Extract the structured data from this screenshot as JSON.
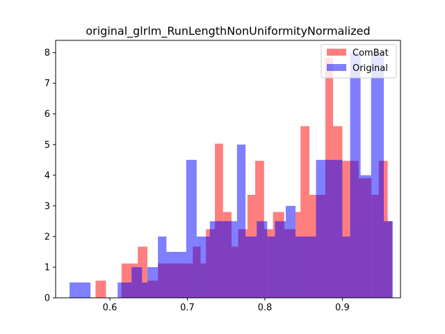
{
  "chart_data": {
    "type": "bar",
    "subtype": "overlapping-histogram",
    "title": "original_glrlm_RunLengthNonUniformityNormalized",
    "xlabel": "",
    "ylabel": "",
    "xlim": [
      0.53,
      0.975
    ],
    "ylim": [
      0,
      8.4
    ],
    "x_ticks": [
      0.6,
      0.7,
      0.8,
      0.9
    ],
    "x_tick_labels": [
      "0.6",
      "0.7",
      "0.8",
      "0.9"
    ],
    "y_ticks": [
      0,
      1,
      2,
      3,
      4,
      5,
      6,
      7,
      8
    ],
    "y_tick_labels": [
      "0",
      "1",
      "2",
      "3",
      "4",
      "5",
      "6",
      "7",
      "8"
    ],
    "grid": false,
    "legend_position": "top-right",
    "series": [
      {
        "name": "ComBat",
        "color": "#ff0000",
        "alpha": 0.5,
        "bins": [
          [
            0.5815,
            0.595,
            0.56
          ],
          [
            0.615,
            0.636,
            1.12
          ],
          [
            0.636,
            0.6485,
            1.67
          ],
          [
            0.6485,
            0.662,
            0.56
          ],
          [
            0.662,
            0.707,
            1.12
          ],
          [
            0.707,
            0.717,
            1.67
          ],
          [
            0.717,
            0.724,
            1.12
          ],
          [
            0.724,
            0.7355,
            2.24
          ],
          [
            0.7355,
            0.746,
            5.03
          ],
          [
            0.746,
            0.757,
            2.8
          ],
          [
            0.757,
            0.7655,
            1.67
          ],
          [
            0.7655,
            0.7775,
            2.24
          ],
          [
            0.7775,
            0.7875,
            3.36
          ],
          [
            0.7875,
            0.799,
            4.47
          ],
          [
            0.799,
            0.8105,
            2.24
          ],
          [
            0.8105,
            0.825,
            2.8
          ],
          [
            0.825,
            0.8395,
            2.24
          ],
          [
            0.8395,
            0.846,
            2.8
          ],
          [
            0.846,
            0.8575,
            5.6
          ],
          [
            0.8575,
            0.878,
            3.36
          ],
          [
            0.878,
            0.888,
            7.83
          ],
          [
            0.888,
            0.9,
            5.6
          ],
          [
            0.9,
            0.921,
            4.47
          ],
          [
            0.921,
            0.9375,
            3.9
          ],
          [
            0.9375,
            0.947,
            3.36
          ],
          [
            0.947,
            0.9585,
            4.47
          ],
          [
            0.9585,
            0.964,
            2.5
          ]
        ]
      },
      {
        "name": "Original",
        "color": "#0000ff",
        "alpha": 0.5,
        "bins": [
          [
            0.548,
            0.575,
            0.5
          ],
          [
            0.61,
            0.628,
            0.5
          ],
          [
            0.628,
            0.6415,
            1.0
          ],
          [
            0.6415,
            0.6485,
            0.5
          ],
          [
            0.6485,
            0.662,
            1.0
          ],
          [
            0.662,
            0.673,
            2.0
          ],
          [
            0.673,
            0.6985,
            1.5
          ],
          [
            0.6985,
            0.712,
            4.5
          ],
          [
            0.712,
            0.729,
            2.0
          ],
          [
            0.729,
            0.7375,
            2.5
          ],
          [
            0.7375,
            0.764,
            2.5
          ],
          [
            0.764,
            0.775,
            5.0
          ],
          [
            0.775,
            0.7895,
            2.0
          ],
          [
            0.7895,
            0.803,
            2.5
          ],
          [
            0.803,
            0.813,
            2.0
          ],
          [
            0.813,
            0.827,
            2.5
          ],
          [
            0.827,
            0.8395,
            3.0
          ],
          [
            0.8395,
            0.866,
            2.0
          ],
          [
            0.866,
            0.885,
            4.5
          ],
          [
            0.885,
            0.9,
            4.5
          ],
          [
            0.9,
            0.91,
            2.0
          ],
          [
            0.91,
            0.9235,
            8.0
          ],
          [
            0.9235,
            0.937,
            4.0
          ],
          [
            0.937,
            0.9535,
            8.0
          ],
          [
            0.9535,
            0.965,
            2.5
          ]
        ]
      }
    ]
  }
}
